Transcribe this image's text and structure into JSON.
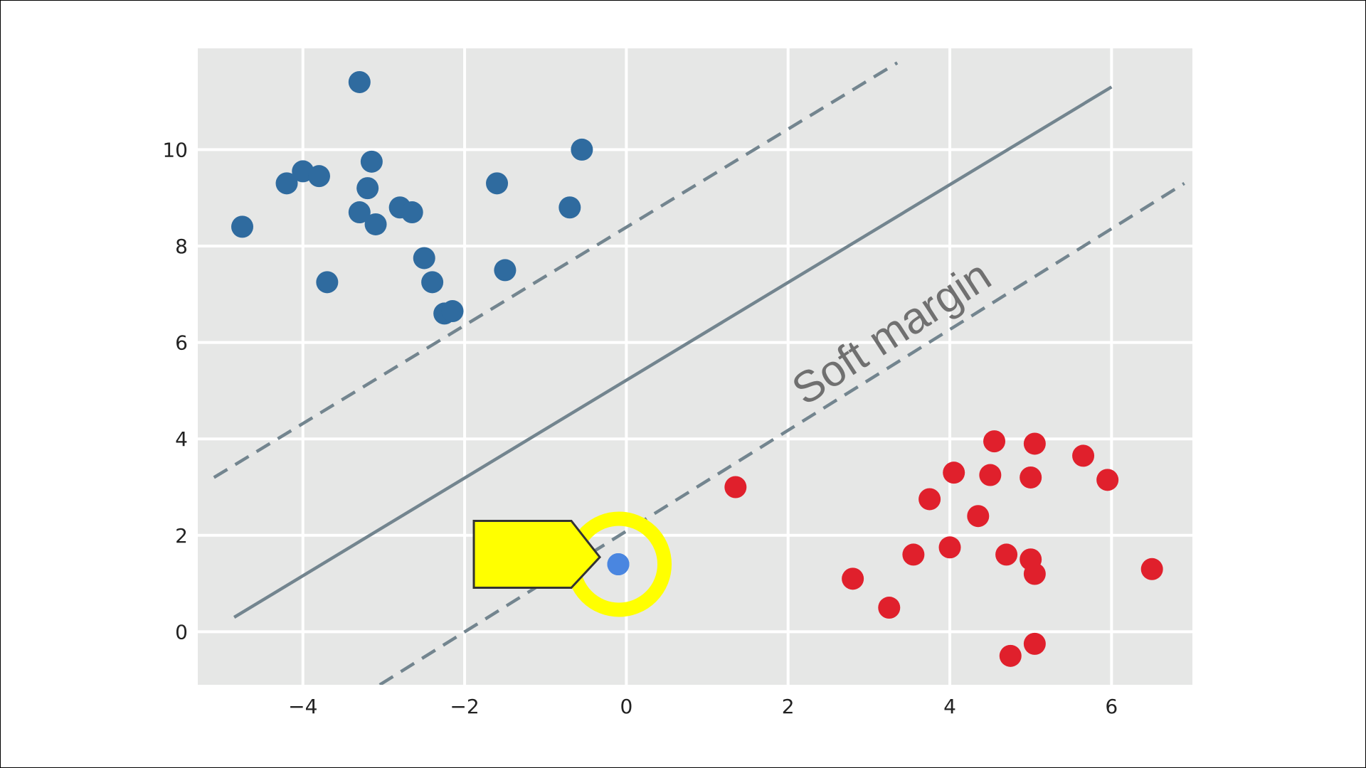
{
  "chart_data": {
    "type": "scatter",
    "title": "",
    "xlabel": "",
    "ylabel": "",
    "xlim": [
      -5.3,
      7.0
    ],
    "ylim": [
      -1.1,
      12.1
    ],
    "x_ticks": [
      -4,
      -2,
      0,
      2,
      4,
      6
    ],
    "x_tick_labels": [
      "−4",
      "−2",
      "0",
      "2",
      "4",
      "6"
    ],
    "y_ticks": [
      0,
      2,
      4,
      6,
      8,
      10
    ],
    "y_tick_labels": [
      "0",
      "2",
      "4",
      "6",
      "8",
      "10"
    ],
    "grid": true,
    "background_color": "#e6e7e6",
    "grid_color": "#ffffff",
    "series": [
      {
        "color": "#2f6b9f",
        "points": [
          [
            -3.3,
            11.4
          ],
          [
            -0.55,
            10.0
          ],
          [
            -4.75,
            8.4
          ],
          [
            -4.2,
            9.3
          ],
          [
            -4.0,
            9.55
          ],
          [
            -3.8,
            9.45
          ],
          [
            -3.15,
            9.75
          ],
          [
            -3.2,
            9.2
          ],
          [
            -3.3,
            8.7
          ],
          [
            -3.1,
            8.45
          ],
          [
            -2.8,
            8.8
          ],
          [
            -2.65,
            8.7
          ],
          [
            -1.6,
            9.3
          ],
          [
            -0.7,
            8.8
          ],
          [
            -3.7,
            7.25
          ],
          [
            -2.5,
            7.75
          ],
          [
            -2.4,
            7.25
          ],
          [
            -1.5,
            7.5
          ],
          [
            -2.25,
            6.6
          ],
          [
            -2.15,
            6.65
          ]
        ]
      },
      {
        "color": "#e0202c",
        "points": [
          [
            1.35,
            3.0
          ],
          [
            4.55,
            3.95
          ],
          [
            5.05,
            3.9
          ],
          [
            5.65,
            3.65
          ],
          [
            5.95,
            3.15
          ],
          [
            4.05,
            3.3
          ],
          [
            4.5,
            3.25
          ],
          [
            5.0,
            3.2
          ],
          [
            3.75,
            2.75
          ],
          [
            4.35,
            2.4
          ],
          [
            3.55,
            1.6
          ],
          [
            4.0,
            1.75
          ],
          [
            4.7,
            1.6
          ],
          [
            5.0,
            1.5
          ],
          [
            5.05,
            1.2
          ],
          [
            6.5,
            1.3
          ],
          [
            2.8,
            1.1
          ],
          [
            3.25,
            0.5
          ],
          [
            5.05,
            -0.25
          ],
          [
            4.75,
            -0.5
          ]
        ]
      },
      {
        "color": "#4a86e0",
        "points": [
          [
            -0.1,
            1.4
          ]
        ]
      }
    ],
    "lines": [
      {
        "style": "solid",
        "color": "#73858f",
        "points": [
          [
            -4.85,
            0.3
          ],
          [
            6.0,
            11.3
          ]
        ]
      },
      {
        "style": "dashed",
        "color": "#73858f",
        "points": [
          [
            -5.1,
            3.2
          ],
          [
            3.35,
            11.8
          ]
        ]
      },
      {
        "style": "dashed",
        "color": "#73858f",
        "points": [
          [
            -3.05,
            -1.1
          ],
          [
            6.9,
            9.3
          ]
        ]
      }
    ],
    "annotations": [
      {
        "text": "Soft margin",
        "x": 3.3,
        "y": 6.15,
        "rotation_deg": -33
      }
    ],
    "highlight": {
      "target": [
        -0.1,
        1.4
      ],
      "ring_color": "#ffff00",
      "arrow_color": "#ffff00",
      "arrow_outline": "#333333"
    }
  }
}
